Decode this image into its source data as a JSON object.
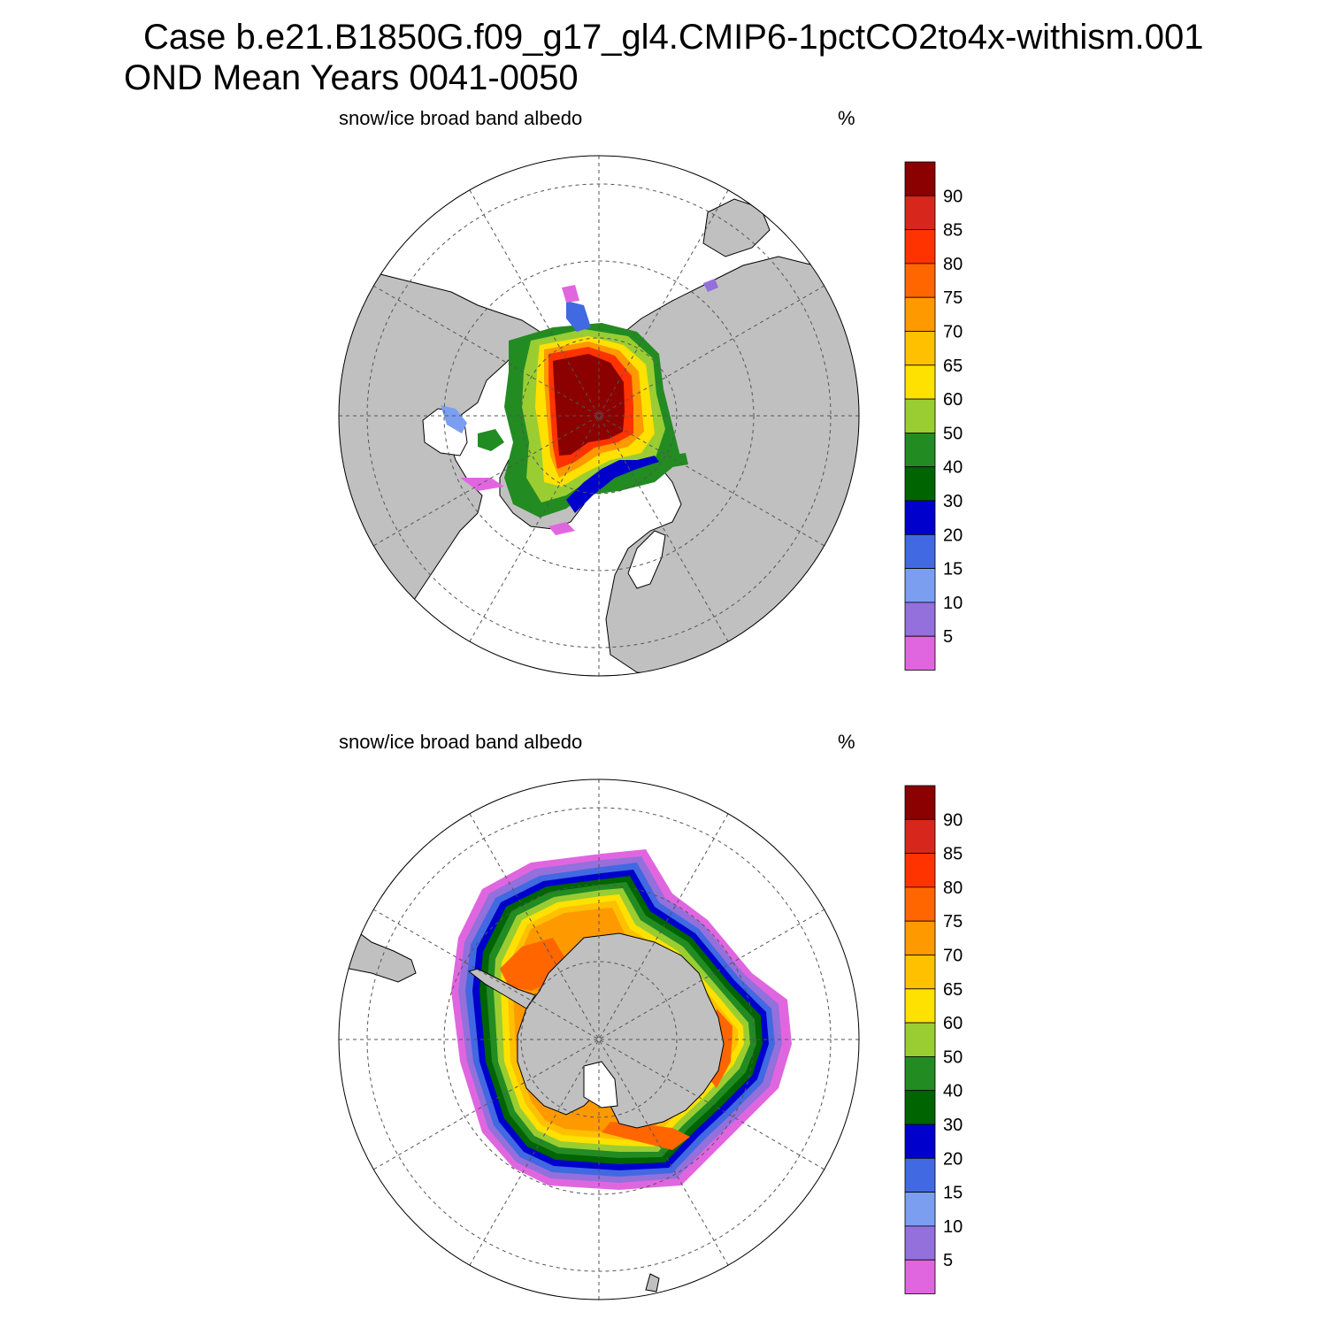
{
  "header": {
    "line1": "Case b.e21.B1850G.f09_g17_gl4.CMIP6-1pctCO2to4x-withism.001",
    "line2": "OND Mean   Years 0041-0050"
  },
  "panels": [
    {
      "id": "north",
      "hemisphere": "Arctic (north polar stereographic)",
      "variable": "snow/ice broad band albedo",
      "units": "%"
    },
    {
      "id": "south",
      "hemisphere": "Antarctic (south polar stereographic)",
      "variable": "snow/ice broad band albedo",
      "units": "%"
    }
  ],
  "colorbar": {
    "labels": [
      "90",
      "85",
      "80",
      "75",
      "70",
      "65",
      "60",
      "50",
      "40",
      "30",
      "20",
      "15",
      "10",
      "5"
    ],
    "colors_top_to_bottom": [
      "#8b0000",
      "#d7261c",
      "#ff3300",
      "#ff6600",
      "#ff9900",
      "#ffc000",
      "#ffe100",
      "#9acd32",
      "#228b22",
      "#006400",
      "#0000cd",
      "#4169e1",
      "#7b9ef0",
      "#9370db",
      "#e066e0"
    ]
  },
  "colors": {
    "land": "#c0c0c0",
    "ocean_no_ice": "#ffffff",
    "grid": "#555555"
  }
}
